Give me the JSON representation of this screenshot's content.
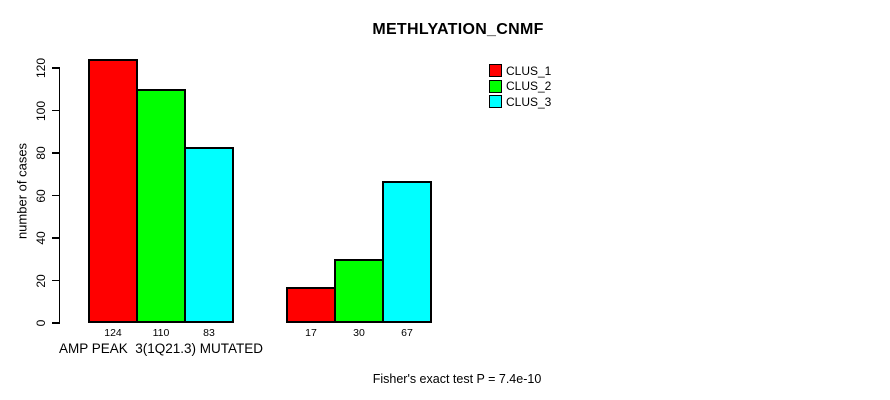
{
  "chart_data": {
    "type": "bar",
    "title": "METHLYATION_CNMF",
    "ylabel": "number of cases",
    "xlabel": "",
    "ylim": [
      0,
      120
    ],
    "yticks": [
      0,
      20,
      40,
      60,
      80,
      100,
      120
    ],
    "grid": false,
    "legend_position": "top-right",
    "show_bar_value_labels": true,
    "categories": [
      "AMP PEAK  3(1Q21.3) MUTATED",
      ""
    ],
    "series": [
      {
        "name": "CLUS_1",
        "color": "#FF0000",
        "values": [
          124,
          17
        ]
      },
      {
        "name": "CLUS_2",
        "color": "#00FF00",
        "values": [
          110,
          30
        ]
      },
      {
        "name": "CLUS_3",
        "color": "#00FFFF",
        "values": [
          83,
          67
        ]
      }
    ],
    "annotation": "Fisher's exact test P = 7.4e-10"
  },
  "colors": {
    "background": "#FFFFFF",
    "axis": "#000000",
    "text": "#000000"
  }
}
